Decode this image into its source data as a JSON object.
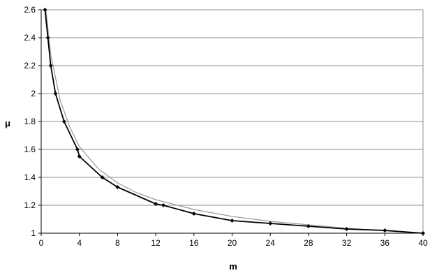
{
  "chart_data": {
    "type": "line",
    "title": "",
    "xlabel": "m",
    "ylabel": "μ",
    "xlim": [
      0,
      40
    ],
    "ylim": [
      1,
      2.6
    ],
    "x_ticks": [
      0,
      4,
      8,
      12,
      16,
      20,
      24,
      28,
      32,
      36,
      40
    ],
    "y_ticks": [
      1,
      1.2,
      1.4,
      1.6,
      1.8,
      2,
      2.2,
      2.4,
      2.6
    ],
    "x_tick_labels": [
      "0",
      "4",
      "8",
      "12",
      "16",
      "20",
      "24",
      "28",
      "32",
      "36",
      "40"
    ],
    "y_tick_labels": [
      "1",
      "1.2",
      "1.4",
      "1.6",
      "1.8",
      "2",
      "2.2",
      "2.4",
      "2.6"
    ],
    "grid": "horizontal",
    "legend": "none",
    "series": [
      {
        "marker": "diamond",
        "color": "#000000",
        "points": [
          {
            "x": 0.4,
            "y": 2.6
          },
          {
            "x": 0.7,
            "y": 2.4
          },
          {
            "x": 1.0,
            "y": 2.2
          },
          {
            "x": 1.5,
            "y": 2.0
          },
          {
            "x": 2.4,
            "y": 1.8
          },
          {
            "x": 3.8,
            "y": 1.6
          },
          {
            "x": 4.0,
            "y": 1.55
          },
          {
            "x": 6.4,
            "y": 1.4
          },
          {
            "x": 8.0,
            "y": 1.33
          },
          {
            "x": 12.0,
            "y": 1.21
          },
          {
            "x": 12.8,
            "y": 1.2
          },
          {
            "x": 16.0,
            "y": 1.14
          },
          {
            "x": 20.0,
            "y": 1.09
          },
          {
            "x": 24.0,
            "y": 1.07
          },
          {
            "x": 28.0,
            "y": 1.05
          },
          {
            "x": 32.0,
            "y": 1.03
          },
          {
            "x": 36.0,
            "y": 1.02
          },
          {
            "x": 40.0,
            "y": 1.0
          }
        ]
      },
      {
        "marker": "none",
        "color": "#999999",
        "points": [
          {
            "x": 0.5,
            "y": 2.6
          },
          {
            "x": 1.0,
            "y": 2.28
          },
          {
            "x": 2.0,
            "y": 1.95
          },
          {
            "x": 3.0,
            "y": 1.76
          },
          {
            "x": 4.0,
            "y": 1.62
          },
          {
            "x": 6.0,
            "y": 1.46
          },
          {
            "x": 8.0,
            "y": 1.36
          },
          {
            "x": 10.0,
            "y": 1.29
          },
          {
            "x": 12.0,
            "y": 1.24
          },
          {
            "x": 16.0,
            "y": 1.17
          },
          {
            "x": 20.0,
            "y": 1.12
          },
          {
            "x": 24.0,
            "y": 1.085
          },
          {
            "x": 28.0,
            "y": 1.06
          },
          {
            "x": 32.0,
            "y": 1.035
          },
          {
            "x": 36.0,
            "y": 1.017
          },
          {
            "x": 40.0,
            "y": 1.0
          }
        ]
      }
    ]
  }
}
